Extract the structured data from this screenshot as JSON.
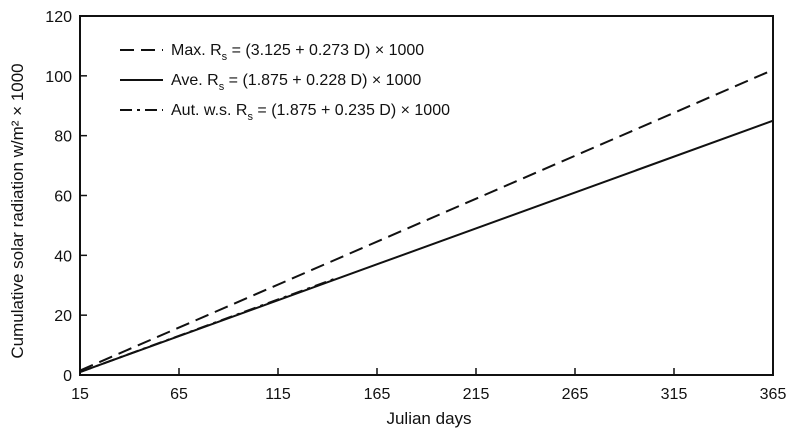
{
  "chart_data": {
    "type": "line",
    "title": "",
    "xlabel": "Julian days",
    "ylabel": "Cumulative solar radiation w/m² × 1000",
    "xlim": [
      15,
      365
    ],
    "ylim": [
      0,
      120
    ],
    "xticks": [
      15,
      65,
      115,
      165,
      215,
      265,
      315,
      365
    ],
    "yticks": [
      0,
      20,
      40,
      60,
      80,
      100,
      120
    ],
    "grid": false,
    "legend_position": "top-left",
    "series": [
      {
        "legend_prefix": "Max. R",
        "legend_sub": "s",
        "legend_suffix": " = (3.125 + 0.273 D) × 1000",
        "style": "dashed",
        "x": [
          15,
          365
        ],
        "y": [
          1.5,
          102
        ]
      },
      {
        "legend_prefix": "Ave. R",
        "legend_sub": "s",
        "legend_suffix": " = (1.875 + 0.228 D) × 1000",
        "style": "solid",
        "x": [
          15,
          365
        ],
        "y": [
          1,
          85
        ]
      },
      {
        "legend_prefix": "Aut. w.s. R",
        "legend_sub": "s",
        "legend_suffix": " = (1.875 + 0.235 D) × 1000",
        "style": "dashdot",
        "x": [
          15,
          145
        ],
        "y": [
          1,
          32.5
        ]
      }
    ]
  }
}
